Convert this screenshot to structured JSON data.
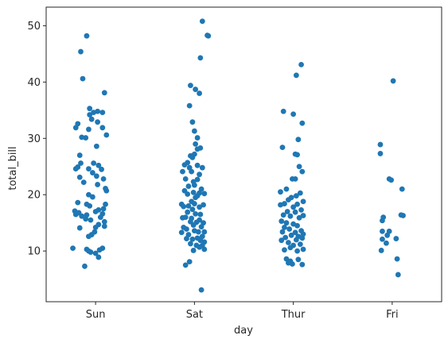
{
  "chart_data": {
    "type": "scatter",
    "title": "",
    "xlabel": "day",
    "ylabel": "total_bill",
    "categories": [
      "Sun",
      "Sat",
      "Thur",
      "Fri"
    ],
    "ylim": [
      1.0,
      53.3
    ],
    "yticks": [
      10,
      20,
      30,
      40,
      50
    ],
    "grid": false,
    "marker_color": "#1f77b4",
    "series": [
      {
        "category": "Sun",
        "points": [
          {
            "j": -0.09,
            "y": 48.2
          },
          {
            "j": -0.15,
            "y": 45.4
          },
          {
            "j": -0.13,
            "y": 40.6
          },
          {
            "j": 0.09,
            "y": 38.1
          },
          {
            "j": -0.06,
            "y": 35.3
          },
          {
            "j": 0.02,
            "y": 34.8
          },
          {
            "j": -0.02,
            "y": 34.6
          },
          {
            "j": -0.06,
            "y": 34.2
          },
          {
            "j": 0.07,
            "y": 34.6
          },
          {
            "j": -0.04,
            "y": 33.4
          },
          {
            "j": -0.18,
            "y": 32.6
          },
          {
            "j": 0.02,
            "y": 32.9
          },
          {
            "j": -0.2,
            "y": 31.9
          },
          {
            "j": -0.07,
            "y": 31.6
          },
          {
            "j": 0.07,
            "y": 31.9
          },
          {
            "j": 0.11,
            "y": 30.6
          },
          {
            "j": -0.14,
            "y": 30.2
          },
          {
            "j": -0.1,
            "y": 30.1
          },
          {
            "j": 0.01,
            "y": 28.6
          },
          {
            "j": -0.16,
            "y": 27.0
          },
          {
            "j": -0.15,
            "y": 25.6
          },
          {
            "j": -0.02,
            "y": 25.6
          },
          {
            "j": 0.03,
            "y": 25.2
          },
          {
            "j": -0.2,
            "y": 24.6
          },
          {
            "j": -0.18,
            "y": 24.9
          },
          {
            "j": -0.07,
            "y": 24.6
          },
          {
            "j": 0.06,
            "y": 24.5
          },
          {
            "j": -0.03,
            "y": 23.9
          },
          {
            "j": 0.01,
            "y": 23.3
          },
          {
            "j": -0.16,
            "y": 23.1
          },
          {
            "j": 0.08,
            "y": 22.8
          },
          {
            "j": -0.12,
            "y": 22.2
          },
          {
            "j": 0.02,
            "y": 21.8
          },
          {
            "j": 0.1,
            "y": 21.1
          },
          {
            "j": 0.11,
            "y": 20.7
          },
          {
            "j": -0.07,
            "y": 20.0
          },
          {
            "j": -0.03,
            "y": 19.6
          },
          {
            "j": -0.18,
            "y": 18.6
          },
          {
            "j": -0.09,
            "y": 18.3
          },
          {
            "j": -0.06,
            "y": 18.0
          },
          {
            "j": 0.1,
            "y": 18.3
          },
          {
            "j": 0.08,
            "y": 17.5
          },
          {
            "j": -0.21,
            "y": 17.1
          },
          {
            "j": -0.17,
            "y": 16.8
          },
          {
            "j": 0.0,
            "y": 17.0
          },
          {
            "j": 0.03,
            "y": 17.3
          },
          {
            "j": -0.2,
            "y": 16.5
          },
          {
            "j": -0.14,
            "y": 16.2
          },
          {
            "j": -0.09,
            "y": 16.4
          },
          {
            "j": 0.07,
            "y": 16.6
          },
          {
            "j": -0.1,
            "y": 15.7
          },
          {
            "j": 0.05,
            "y": 16.0
          },
          {
            "j": -0.05,
            "y": 15.5
          },
          {
            "j": 0.09,
            "y": 15.2
          },
          {
            "j": 0.03,
            "y": 14.7
          },
          {
            "j": 0.09,
            "y": 14.4
          },
          {
            "j": -0.16,
            "y": 14.1
          },
          {
            "j": 0.0,
            "y": 14.2
          },
          {
            "j": -0.01,
            "y": 13.4
          },
          {
            "j": -0.04,
            "y": 12.9
          },
          {
            "j": -0.07,
            "y": 12.6
          },
          {
            "j": -0.23,
            "y": 10.5
          },
          {
            "j": -0.09,
            "y": 10.3
          },
          {
            "j": -0.07,
            "y": 10.0
          },
          {
            "j": 0.07,
            "y": 10.5
          },
          {
            "j": 0.04,
            "y": 10.2
          },
          {
            "j": 0.0,
            "y": 9.6
          },
          {
            "j": -0.05,
            "y": 9.8
          },
          {
            "j": 0.03,
            "y": 8.9
          },
          {
            "j": -0.11,
            "y": 7.3
          }
        ]
      },
      {
        "category": "Sat",
        "points": [
          {
            "j": 0.08,
            "y": 50.8
          },
          {
            "j": 0.13,
            "y": 48.3
          },
          {
            "j": 0.14,
            "y": 48.2
          },
          {
            "j": 0.06,
            "y": 44.3
          },
          {
            "j": -0.04,
            "y": 39.4
          },
          {
            "j": 0.01,
            "y": 38.7
          },
          {
            "j": 0.05,
            "y": 38.0
          },
          {
            "j": -0.05,
            "y": 35.8
          },
          {
            "j": -0.02,
            "y": 32.9
          },
          {
            "j": 0.0,
            "y": 31.3
          },
          {
            "j": 0.03,
            "y": 30.1
          },
          {
            "j": 0.01,
            "y": 29.0
          },
          {
            "j": 0.06,
            "y": 28.3
          },
          {
            "j": 0.03,
            "y": 28.1
          },
          {
            "j": -0.04,
            "y": 26.9
          },
          {
            "j": 0.0,
            "y": 27.2
          },
          {
            "j": -0.02,
            "y": 26.6
          },
          {
            "j": -0.07,
            "y": 25.7
          },
          {
            "j": -0.1,
            "y": 25.3
          },
          {
            "j": -0.05,
            "y": 24.8
          },
          {
            "j": 0.03,
            "y": 25.2
          },
          {
            "j": 0.08,
            "y": 24.8
          },
          {
            "j": -0.12,
            "y": 24.1
          },
          {
            "j": -0.03,
            "y": 24.1
          },
          {
            "j": 0.05,
            "y": 23.6
          },
          {
            "j": -0.09,
            "y": 22.8
          },
          {
            "j": 0.03,
            "y": 22.7
          },
          {
            "j": -0.01,
            "y": 22.3
          },
          {
            "j": -0.06,
            "y": 21.5
          },
          {
            "j": 0.0,
            "y": 21.7
          },
          {
            "j": 0.07,
            "y": 21.0
          },
          {
            "j": -0.1,
            "y": 20.7
          },
          {
            "j": -0.01,
            "y": 20.4
          },
          {
            "j": 0.05,
            "y": 20.3
          },
          {
            "j": 0.1,
            "y": 20.2
          },
          {
            "j": -0.07,
            "y": 20.1
          },
          {
            "j": 0.03,
            "y": 19.8
          },
          {
            "j": 0.01,
            "y": 19.5
          },
          {
            "j": -0.03,
            "y": 18.8
          },
          {
            "j": -0.13,
            "y": 18.3
          },
          {
            "j": -0.11,
            "y": 17.9
          },
          {
            "j": -0.06,
            "y": 18.0
          },
          {
            "j": 0.0,
            "y": 18.4
          },
          {
            "j": 0.09,
            "y": 18.2
          },
          {
            "j": 0.05,
            "y": 17.8
          },
          {
            "j": -0.02,
            "y": 17.4
          },
          {
            "j": -0.07,
            "y": 16.9
          },
          {
            "j": 0.01,
            "y": 16.6
          },
          {
            "j": 0.06,
            "y": 16.5
          },
          {
            "j": -0.09,
            "y": 16.0
          },
          {
            "j": -0.12,
            "y": 15.9
          },
          {
            "j": -0.03,
            "y": 15.8
          },
          {
            "j": 0.05,
            "y": 15.5
          },
          {
            "j": -0.04,
            "y": 15.2
          },
          {
            "j": 0.02,
            "y": 15.1
          },
          {
            "j": 0.09,
            "y": 15.0
          },
          {
            "j": -0.01,
            "y": 14.6
          },
          {
            "j": 0.07,
            "y": 14.3
          },
          {
            "j": -0.11,
            "y": 14.2
          },
          {
            "j": -0.08,
            "y": 13.9
          },
          {
            "j": 0.0,
            "y": 13.6
          },
          {
            "j": 0.04,
            "y": 13.4
          },
          {
            "j": 0.1,
            "y": 13.4
          },
          {
            "j": -0.13,
            "y": 13.3
          },
          {
            "j": -0.06,
            "y": 12.9
          },
          {
            "j": 0.08,
            "y": 12.6
          },
          {
            "j": 0.03,
            "y": 12.3
          },
          {
            "j": -0.02,
            "y": 12.1
          },
          {
            "j": -0.08,
            "y": 12.2
          },
          {
            "j": 0.06,
            "y": 11.9
          },
          {
            "j": 0.1,
            "y": 11.6
          },
          {
            "j": -0.04,
            "y": 11.3
          },
          {
            "j": 0.02,
            "y": 11.0
          },
          {
            "j": 0.08,
            "y": 11.0
          },
          {
            "j": 0.05,
            "y": 10.7
          },
          {
            "j": 0.1,
            "y": 10.3
          },
          {
            "j": -0.01,
            "y": 10.1
          },
          {
            "j": -0.05,
            "y": 8.1
          },
          {
            "j": -0.09,
            "y": 7.5
          },
          {
            "j": 0.07,
            "y": 3.1
          }
        ]
      },
      {
        "category": "Thur",
        "points": [
          {
            "j": 0.08,
            "y": 43.1
          },
          {
            "j": 0.03,
            "y": 41.2
          },
          {
            "j": -0.1,
            "y": 34.8
          },
          {
            "j": 0.0,
            "y": 34.3
          },
          {
            "j": 0.09,
            "y": 32.7
          },
          {
            "j": 0.05,
            "y": 29.8
          },
          {
            "j": -0.11,
            "y": 28.4
          },
          {
            "j": 0.02,
            "y": 27.2
          },
          {
            "j": 0.04,
            "y": 27.1
          },
          {
            "j": 0.06,
            "y": 25.0
          },
          {
            "j": 0.09,
            "y": 24.1
          },
          {
            "j": -0.01,
            "y": 22.8
          },
          {
            "j": 0.02,
            "y": 22.8
          },
          {
            "j": -0.07,
            "y": 21.0
          },
          {
            "j": -0.13,
            "y": 20.5
          },
          {
            "j": 0.07,
            "y": 20.3
          },
          {
            "j": 0.03,
            "y": 19.8
          },
          {
            "j": -0.02,
            "y": 19.5
          },
          {
            "j": -0.05,
            "y": 19.1
          },
          {
            "j": 0.1,
            "y": 18.8
          },
          {
            "j": -0.09,
            "y": 18.4
          },
          {
            "j": -0.13,
            "y": 18.2
          },
          {
            "j": 0.04,
            "y": 18.3
          },
          {
            "j": 0.0,
            "y": 17.8
          },
          {
            "j": 0.08,
            "y": 17.3
          },
          {
            "j": -0.06,
            "y": 17.0
          },
          {
            "j": 0.02,
            "y": 16.9
          },
          {
            "j": -0.1,
            "y": 16.4
          },
          {
            "j": -0.03,
            "y": 16.2
          },
          {
            "j": 0.06,
            "y": 15.9
          },
          {
            "j": 0.1,
            "y": 16.3
          },
          {
            "j": -0.12,
            "y": 15.3
          },
          {
            "j": -0.07,
            "y": 15.0
          },
          {
            "j": 0.0,
            "y": 14.8
          },
          {
            "j": 0.04,
            "y": 14.5
          },
          {
            "j": -0.09,
            "y": 14.2
          },
          {
            "j": -0.04,
            "y": 13.9
          },
          {
            "j": 0.08,
            "y": 13.6
          },
          {
            "j": -0.11,
            "y": 13.4
          },
          {
            "j": 0.02,
            "y": 13.3
          },
          {
            "j": 0.1,
            "y": 13.0
          },
          {
            "j": -0.02,
            "y": 12.8
          },
          {
            "j": 0.05,
            "y": 12.6
          },
          {
            "j": -0.08,
            "y": 12.4
          },
          {
            "j": 0.09,
            "y": 12.3
          },
          {
            "j": 0.03,
            "y": 12.0
          },
          {
            "j": -0.12,
            "y": 11.9
          },
          {
            "j": -0.05,
            "y": 11.5
          },
          {
            "j": 0.07,
            "y": 11.2
          },
          {
            "j": 0.0,
            "y": 11.0
          },
          {
            "j": -0.03,
            "y": 10.6
          },
          {
            "j": 0.1,
            "y": 10.3
          },
          {
            "j": -0.09,
            "y": 10.2
          },
          {
            "j": 0.04,
            "y": 10.0
          },
          {
            "j": -0.07,
            "y": 8.6
          },
          {
            "j": 0.05,
            "y": 8.5
          },
          {
            "j": -0.03,
            "y": 8.2
          },
          {
            "j": -0.01,
            "y": 7.7
          },
          {
            "j": 0.09,
            "y": 7.6
          },
          {
            "j": -0.05,
            "y": 7.9
          }
        ]
      },
      {
        "category": "Fri",
        "points": [
          {
            "j": 0.01,
            "y": 40.2
          },
          {
            "j": -0.12,
            "y": 28.9
          },
          {
            "j": -0.12,
            "y": 27.3
          },
          {
            "j": -0.03,
            "y": 22.8
          },
          {
            "j": -0.01,
            "y": 22.6
          },
          {
            "j": 0.1,
            "y": 21.0
          },
          {
            "j": 0.09,
            "y": 16.4
          },
          {
            "j": 0.11,
            "y": 16.3
          },
          {
            "j": -0.09,
            "y": 16.0
          },
          {
            "j": -0.1,
            "y": 15.4
          },
          {
            "j": -0.1,
            "y": 13.5
          },
          {
            "j": -0.03,
            "y": 13.5
          },
          {
            "j": -0.05,
            "y": 12.8
          },
          {
            "j": 0.04,
            "y": 12.2
          },
          {
            "j": -0.1,
            "y": 12.1
          },
          {
            "j": -0.06,
            "y": 11.4
          },
          {
            "j": -0.11,
            "y": 10.1
          },
          {
            "j": 0.05,
            "y": 8.6
          },
          {
            "j": 0.06,
            "y": 5.8
          }
        ]
      }
    ]
  }
}
